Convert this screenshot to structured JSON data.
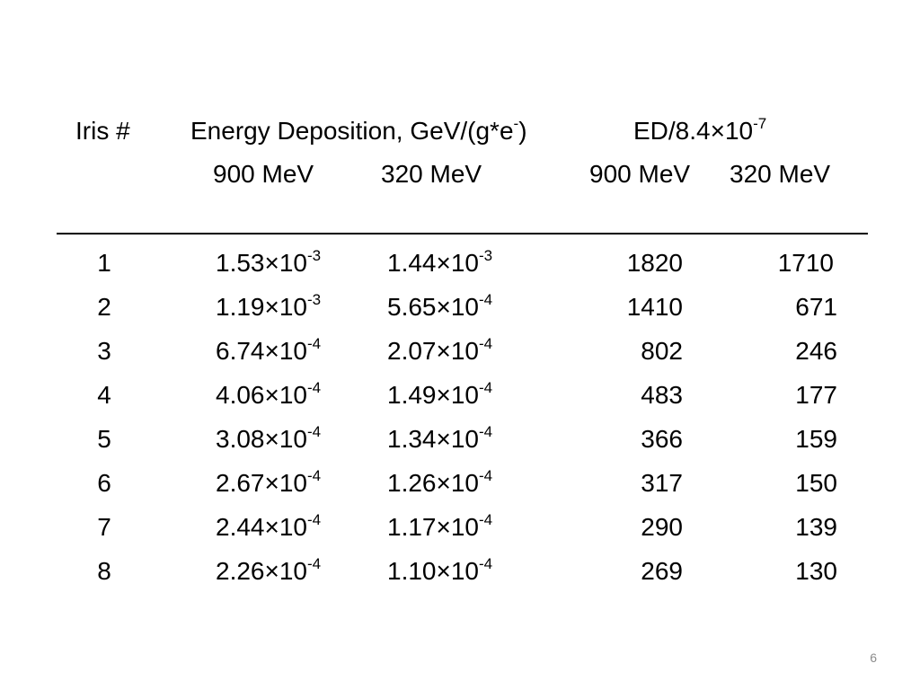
{
  "header": {
    "iris": "Iris #",
    "energy_deposition": "Energy Deposition, GeV/(g*e",
    "energy_deposition_sup": "-",
    "energy_deposition_close": ")",
    "ratio": "ED/8.4×10",
    "ratio_sup": "-7"
  },
  "subheader": {
    "ed_900": "900 MeV",
    "ed_320": "320 MeV",
    "ratio_900": "900 MeV",
    "ratio_320": "320 MeV"
  },
  "rows": [
    {
      "iris": "1",
      "ed_900": {
        "m": "1.53×10",
        "e": "-3"
      },
      "ed_320": {
        "m": "1.44×10",
        "e": "-3"
      },
      "ratio_900": "1820",
      "ratio_320": "1710"
    },
    {
      "iris": "2",
      "ed_900": {
        "m": "1.19×10",
        "e": "-3"
      },
      "ed_320": {
        "m": "5.65×10",
        "e": "-4"
      },
      "ratio_900": "1410",
      "ratio_320": "671"
    },
    {
      "iris": "3",
      "ed_900": {
        "m": "6.74×10",
        "e": "-4"
      },
      "ed_320": {
        "m": "2.07×10",
        "e": "-4"
      },
      "ratio_900": "802",
      "ratio_320": "246"
    },
    {
      "iris": "4",
      "ed_900": {
        "m": "4.06×10",
        "e": "-4"
      },
      "ed_320": {
        "m": "1.49×10",
        "e": "-4"
      },
      "ratio_900": "483",
      "ratio_320": "177"
    },
    {
      "iris": "5",
      "ed_900": {
        "m": "3.08×10",
        "e": "-4"
      },
      "ed_320": {
        "m": "1.34×10",
        "e": "-4"
      },
      "ratio_900": "366",
      "ratio_320": "159"
    },
    {
      "iris": "6",
      "ed_900": {
        "m": "2.67×10",
        "e": "-4"
      },
      "ed_320": {
        "m": "1.26×10",
        "e": "-4"
      },
      "ratio_900": "317",
      "ratio_320": "150"
    },
    {
      "iris": "7",
      "ed_900": {
        "m": "2.44×10",
        "e": "-4"
      },
      "ed_320": {
        "m": "1.17×10",
        "e": "-4"
      },
      "ratio_900": "290",
      "ratio_320": "139"
    },
    {
      "iris": "8",
      "ed_900": {
        "m": "2.26×10",
        "e": "-4"
      },
      "ed_320": {
        "m": "1.10×10",
        "e": "-4"
      },
      "ratio_900": "269",
      "ratio_320": "130"
    }
  ],
  "page_number": "6"
}
